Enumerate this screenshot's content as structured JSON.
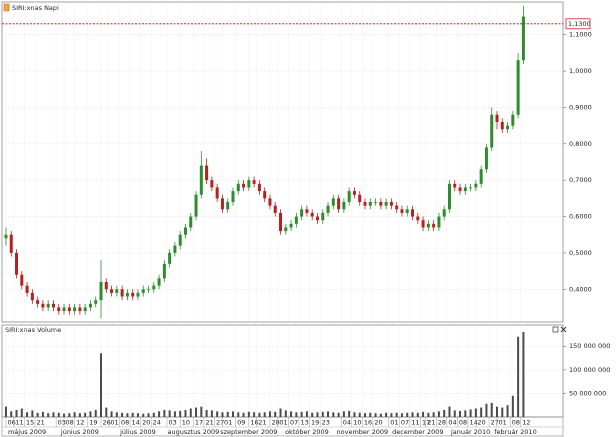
{
  "chart_data": [
    {
      "type": "candlestick",
      "title": "SIRI:xnas Napi",
      "x": [
        0,
        2,
        4,
        6,
        8,
        10,
        12,
        14,
        16,
        18,
        20,
        22,
        24,
        26,
        28,
        30,
        32,
        34,
        36,
        38,
        40,
        42,
        44,
        46,
        48,
        50,
        52,
        54,
        56,
        58,
        60,
        62,
        64,
        66,
        68,
        70,
        72,
        74,
        76,
        78,
        80,
        82,
        84,
        86,
        88,
        90,
        92,
        94,
        96,
        98,
        100,
        102,
        104,
        106,
        108,
        110,
        112,
        114,
        116,
        118,
        120,
        122,
        124,
        126,
        128,
        130,
        132,
        134,
        136,
        138,
        140,
        142,
        144,
        146,
        148,
        150,
        152,
        154,
        156,
        158,
        160,
        162,
        164,
        166,
        168,
        170,
        172,
        174,
        176,
        178,
        180,
        182,
        184,
        186,
        188,
        190,
        192,
        194,
        196
      ],
      "open": [
        0.54,
        0.55,
        0.5,
        0.44,
        0.41,
        0.39,
        0.37,
        0.36,
        0.35,
        0.36,
        0.35,
        0.34,
        0.35,
        0.34,
        0.35,
        0.34,
        0.35,
        0.36,
        0.37,
        0.42,
        0.4,
        0.39,
        0.4,
        0.38,
        0.39,
        0.38,
        0.39,
        0.4,
        0.4,
        0.41,
        0.43,
        0.47,
        0.5,
        0.52,
        0.55,
        0.57,
        0.6,
        0.66,
        0.74,
        0.7,
        0.68,
        0.65,
        0.62,
        0.64,
        0.67,
        0.69,
        0.68,
        0.7,
        0.69,
        0.67,
        0.65,
        0.63,
        0.61,
        0.56,
        0.57,
        0.58,
        0.6,
        0.62,
        0.61,
        0.6,
        0.59,
        0.61,
        0.63,
        0.65,
        0.62,
        0.64,
        0.67,
        0.66,
        0.64,
        0.63,
        0.64,
        0.64,
        0.63,
        0.64,
        0.63,
        0.62,
        0.61,
        0.62,
        0.6,
        0.59,
        0.57,
        0.58,
        0.57,
        0.6,
        0.62,
        0.69,
        0.68,
        0.67,
        0.68,
        0.68,
        0.69,
        0.73,
        0.79,
        0.88,
        0.86,
        0.84,
        0.85,
        0.88,
        1.03
      ],
      "high": [
        0.57,
        0.56,
        0.51,
        0.45,
        0.42,
        0.4,
        0.38,
        0.37,
        0.37,
        0.37,
        0.36,
        0.36,
        0.36,
        0.36,
        0.36,
        0.36,
        0.37,
        0.38,
        0.48,
        0.43,
        0.41,
        0.41,
        0.41,
        0.4,
        0.4,
        0.4,
        0.41,
        0.41,
        0.42,
        0.44,
        0.48,
        0.51,
        0.53,
        0.56,
        0.58,
        0.61,
        0.67,
        0.78,
        0.76,
        0.71,
        0.69,
        0.66,
        0.65,
        0.68,
        0.7,
        0.7,
        0.71,
        0.71,
        0.7,
        0.68,
        0.66,
        0.64,
        0.62,
        0.58,
        0.59,
        0.61,
        0.63,
        0.63,
        0.62,
        0.61,
        0.62,
        0.64,
        0.66,
        0.66,
        0.65,
        0.68,
        0.68,
        0.67,
        0.65,
        0.65,
        0.65,
        0.65,
        0.65,
        0.65,
        0.64,
        0.63,
        0.63,
        0.63,
        0.61,
        0.6,
        0.59,
        0.59,
        0.61,
        0.63,
        0.7,
        0.7,
        0.69,
        0.69,
        0.69,
        0.7,
        0.74,
        0.8,
        0.9,
        0.89,
        0.87,
        0.86,
        0.89,
        1.05,
        1.18
      ],
      "low": [
        0.52,
        0.49,
        0.43,
        0.4,
        0.38,
        0.36,
        0.35,
        0.34,
        0.34,
        0.34,
        0.33,
        0.33,
        0.33,
        0.33,
        0.33,
        0.33,
        0.34,
        0.35,
        0.32,
        0.39,
        0.38,
        0.38,
        0.37,
        0.37,
        0.37,
        0.37,
        0.38,
        0.39,
        0.39,
        0.4,
        0.42,
        0.46,
        0.49,
        0.51,
        0.54,
        0.56,
        0.59,
        0.65,
        0.69,
        0.67,
        0.64,
        0.61,
        0.61,
        0.63,
        0.66,
        0.67,
        0.67,
        0.68,
        0.66,
        0.64,
        0.62,
        0.6,
        0.55,
        0.55,
        0.56,
        0.57,
        0.59,
        0.6,
        0.59,
        0.58,
        0.58,
        0.6,
        0.62,
        0.61,
        0.61,
        0.63,
        0.65,
        0.63,
        0.62,
        0.62,
        0.63,
        0.62,
        0.62,
        0.62,
        0.61,
        0.6,
        0.6,
        0.59,
        0.58,
        0.56,
        0.56,
        0.56,
        0.56,
        0.59,
        0.61,
        0.67,
        0.66,
        0.66,
        0.67,
        0.67,
        0.68,
        0.72,
        0.78,
        0.84,
        0.83,
        0.83,
        0.84,
        0.87,
        1.02
      ],
      "close": [
        0.55,
        0.5,
        0.44,
        0.41,
        0.39,
        0.37,
        0.36,
        0.35,
        0.36,
        0.35,
        0.34,
        0.35,
        0.34,
        0.35,
        0.34,
        0.35,
        0.36,
        0.37,
        0.42,
        0.4,
        0.39,
        0.4,
        0.38,
        0.39,
        0.38,
        0.39,
        0.4,
        0.4,
        0.41,
        0.43,
        0.47,
        0.5,
        0.52,
        0.55,
        0.57,
        0.6,
        0.66,
        0.74,
        0.7,
        0.68,
        0.65,
        0.62,
        0.64,
        0.67,
        0.69,
        0.68,
        0.7,
        0.69,
        0.67,
        0.65,
        0.63,
        0.61,
        0.56,
        0.57,
        0.58,
        0.6,
        0.62,
        0.61,
        0.6,
        0.59,
        0.61,
        0.63,
        0.65,
        0.62,
        0.64,
        0.67,
        0.66,
        0.64,
        0.63,
        0.64,
        0.64,
        0.63,
        0.64,
        0.63,
        0.62,
        0.61,
        0.62,
        0.6,
        0.59,
        0.57,
        0.58,
        0.57,
        0.6,
        0.62,
        0.69,
        0.68,
        0.67,
        0.68,
        0.68,
        0.69,
        0.73,
        0.79,
        0.88,
        0.86,
        0.84,
        0.85,
        0.88,
        1.03,
        1.15
      ],
      "up_color": "#2e8b2e",
      "down_color": "#b22222",
      "xlim": [
        -1.5,
        211
      ],
      "ylim": [
        0.31,
        1.19
      ],
      "yticks": [
        {
          "value": 0.4,
          "label": "0,4000"
        },
        {
          "value": 0.5,
          "label": "0,5000"
        },
        {
          "value": 0.6,
          "label": "0,6000"
        },
        {
          "value": 0.7,
          "label": "0,7000"
        },
        {
          "value": 0.8,
          "label": "0,8000"
        },
        {
          "value": 0.9,
          "label": "0,9000"
        },
        {
          "value": 1.0,
          "label": "1,0000"
        },
        {
          "value": 1.1,
          "label": "1,1000"
        }
      ],
      "reference_line": {
        "value": 1.13,
        "label": "1,1300",
        "color": "#cc0000"
      },
      "grid": true
    },
    {
      "type": "bar",
      "title": "SIRI:xnas Volume",
      "x": [
        0,
        2,
        4,
        6,
        8,
        10,
        12,
        14,
        16,
        18,
        20,
        22,
        24,
        26,
        28,
        30,
        32,
        34,
        36,
        38,
        40,
        42,
        44,
        46,
        48,
        50,
        52,
        54,
        56,
        58,
        60,
        62,
        64,
        66,
        68,
        70,
        72,
        74,
        76,
        78,
        80,
        82,
        84,
        86,
        88,
        90,
        92,
        94,
        96,
        98,
        100,
        102,
        104,
        106,
        108,
        110,
        112,
        114,
        116,
        118,
        120,
        122,
        124,
        126,
        128,
        130,
        132,
        134,
        136,
        138,
        140,
        142,
        144,
        146,
        148,
        150,
        152,
        154,
        156,
        158,
        160,
        162,
        164,
        166,
        168,
        170,
        172,
        174,
        176,
        178,
        180,
        182,
        184,
        186,
        188,
        190,
        192,
        194,
        196
      ],
      "values": [
        22000000,
        12000000,
        15000000,
        18000000,
        10000000,
        14000000,
        9000000,
        11000000,
        8000000,
        10000000,
        9000000,
        7000000,
        8000000,
        10000000,
        8000000,
        9000000,
        12000000,
        15000000,
        135000000,
        20000000,
        12000000,
        10000000,
        9000000,
        8000000,
        9000000,
        8000000,
        7000000,
        8000000,
        9000000,
        12000000,
        15000000,
        14000000,
        12000000,
        13000000,
        15000000,
        18000000,
        20000000,
        22000000,
        15000000,
        14000000,
        12000000,
        10000000,
        11000000,
        12000000,
        10000000,
        9000000,
        11000000,
        10000000,
        9000000,
        10000000,
        12000000,
        11000000,
        18000000,
        14000000,
        12000000,
        10000000,
        11000000,
        12000000,
        9000000,
        10000000,
        11000000,
        12000000,
        10000000,
        9000000,
        12000000,
        13000000,
        10000000,
        9000000,
        8000000,
        9000000,
        8000000,
        7000000,
        9000000,
        8000000,
        9000000,
        8000000,
        9000000,
        10000000,
        9000000,
        11000000,
        9000000,
        10000000,
        12000000,
        15000000,
        22000000,
        14000000,
        13000000,
        14000000,
        16000000,
        18000000,
        20000000,
        28000000,
        30000000,
        22000000,
        20000000,
        25000000,
        45000000,
        170000000,
        180000000
      ],
      "color": "#4a4a4a",
      "xlim": [
        -1.5,
        211
      ],
      "ylim": [
        0,
        195000000
      ],
      "yticks": [
        {
          "value": 50000000,
          "label": "50 000 000"
        },
        {
          "value": 100000000,
          "label": "100 000 000"
        },
        {
          "value": 150000000,
          "label": "150 000 000"
        }
      ],
      "xticks": [
        {
          "value": 0,
          "label": "06"
        },
        {
          "value": 3,
          "label": "11"
        },
        {
          "value": 7,
          "label": "15"
        },
        {
          "value": 11,
          "label": "21"
        },
        {
          "value": 19,
          "label": "03"
        },
        {
          "value": 22,
          "label": "08"
        },
        {
          "value": 26,
          "label": "12"
        },
        {
          "value": 31,
          "label": "19"
        },
        {
          "value": 36,
          "label": "26"
        },
        {
          "value": 39,
          "label": "01"
        },
        {
          "value": 43,
          "label": "08"
        },
        {
          "value": 47,
          "label": "14"
        },
        {
          "value": 51,
          "label": "20"
        },
        {
          "value": 55,
          "label": "24"
        },
        {
          "value": 61,
          "label": "03"
        },
        {
          "value": 66,
          "label": "10"
        },
        {
          "value": 71,
          "label": "17"
        },
        {
          "value": 75,
          "label": "21"
        },
        {
          "value": 79,
          "label": "27"
        },
        {
          "value": 82,
          "label": "01"
        },
        {
          "value": 87,
          "label": "09"
        },
        {
          "value": 92,
          "label": "16"
        },
        {
          "value": 95,
          "label": "21"
        },
        {
          "value": 100,
          "label": "28"
        },
        {
          "value": 103,
          "label": "01"
        },
        {
          "value": 107,
          "label": "07"
        },
        {
          "value": 111,
          "label": "13"
        },
        {
          "value": 115,
          "label": "19"
        },
        {
          "value": 119,
          "label": "23"
        },
        {
          "value": 127,
          "label": "04"
        },
        {
          "value": 131,
          "label": "10"
        },
        {
          "value": 135,
          "label": "16"
        },
        {
          "value": 139,
          "label": "20"
        },
        {
          "value": 145,
          "label": "01"
        },
        {
          "value": 149,
          "label": "07"
        },
        {
          "value": 153,
          "label": "11"
        },
        {
          "value": 157,
          "label": "17"
        },
        {
          "value": 159,
          "label": "21"
        },
        {
          "value": 163,
          "label": "28"
        },
        {
          "value": 167,
          "label": "04"
        },
        {
          "value": 171,
          "label": "08"
        },
        {
          "value": 175,
          "label": "14"
        },
        {
          "value": 178,
          "label": "20"
        },
        {
          "value": 183,
          "label": "27"
        },
        {
          "value": 186,
          "label": "01"
        },
        {
          "value": 191,
          "label": "08"
        },
        {
          "value": 195,
          "label": "12"
        }
      ],
      "month_ticks": [
        {
          "value": 8,
          "label": "május 2009"
        },
        {
          "value": 28,
          "label": "június 2009"
        },
        {
          "value": 50,
          "label": "július 2009"
        },
        {
          "value": 71,
          "label": "augusztus 2009"
        },
        {
          "value": 92,
          "label": "szeptember 2009"
        },
        {
          "value": 114,
          "label": "október 2009"
        },
        {
          "value": 135,
          "label": "november 2009"
        },
        {
          "value": 156,
          "label": "december 2009"
        },
        {
          "value": 176,
          "label": "január 2010"
        },
        {
          "value": 193,
          "label": "február 2010"
        }
      ],
      "grid": true
    }
  ]
}
